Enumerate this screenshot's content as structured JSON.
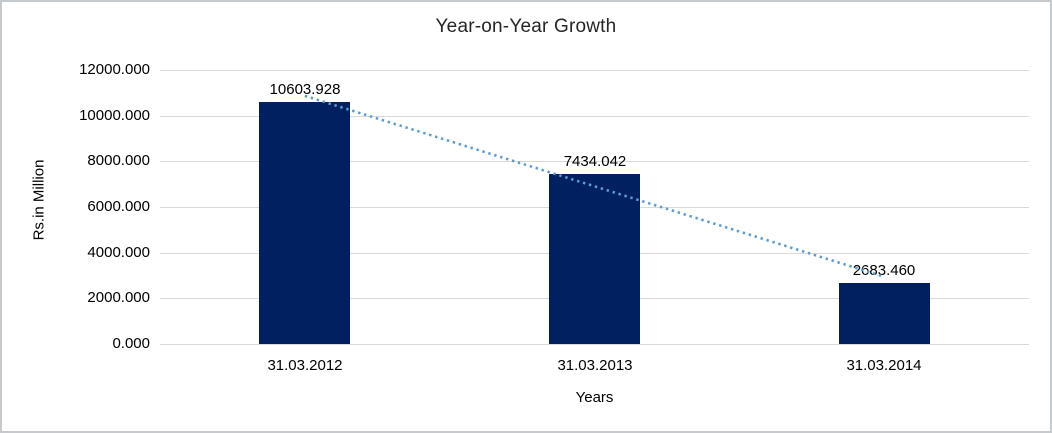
{
  "chart_data": {
    "type": "bar",
    "title": "Year-on-Year Growth",
    "xlabel": "Years",
    "ylabel": "Rs.in Million",
    "categories": [
      "31.03.2012",
      "31.03.2013",
      "31.03.2014"
    ],
    "values": [
      10603.928,
      7434.042,
      2683.46
    ],
    "data_labels": [
      "10603.928",
      "7434.042",
      "2683.460"
    ],
    "ylim": [
      0,
      12000
    ],
    "ytick_step": 2000,
    "ytick_labels": [
      "0.000",
      "2000.000",
      "4000.000",
      "6000.000",
      "8000.000",
      "10000.000",
      "12000.000"
    ],
    "grid": true,
    "gridline_color": "#d9d9d9",
    "bar_color": "#002060",
    "legend": "none",
    "trendline": {
      "type": "linear",
      "style": "dotted",
      "color": "#5b9bd5"
    }
  }
}
